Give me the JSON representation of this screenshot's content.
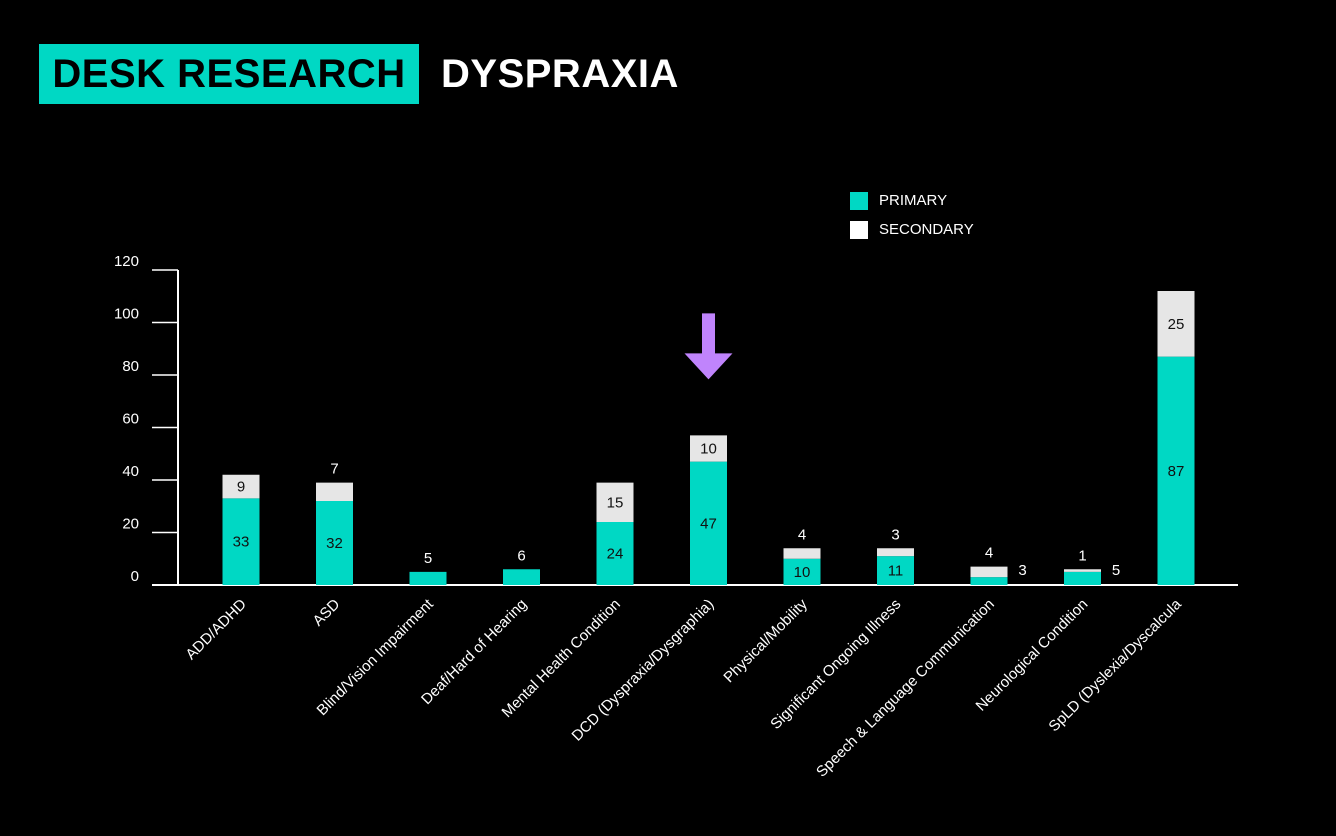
{
  "header": {
    "badge": "DESK RESEARCH",
    "title": "DYSPRAXIA"
  },
  "colors": {
    "background": "#000000",
    "primary": "#00d8c4",
    "secondary": "#e6e6e6",
    "highlight_arrow": "#c084fc",
    "text": "#ffffff"
  },
  "chart_data": {
    "type": "bar",
    "stacked": true,
    "title": "",
    "xlabel": "",
    "ylabel": "",
    "ylim": [
      0,
      120
    ],
    "yticks": [
      0,
      20,
      40,
      60,
      80,
      100,
      120
    ],
    "grid": false,
    "legend_position": "top-right",
    "categories": [
      "ADD/ADHD",
      "ASD",
      "Blind/Vision Impairment",
      "Deaf/Hard of Hearing",
      "Mental Health Condition",
      "DCD (Dyspraxia/Dysgraphia)",
      "Physical/Mobility",
      "Significant Ongoing Illness",
      "Speech & Language Communication",
      "Neurological Condition",
      "SpLD (Dyslexia/Dyscalcula"
    ],
    "series": [
      {
        "name": "PRIMARY",
        "values": [
          33,
          32,
          5,
          6,
          24,
          47,
          10,
          11,
          3,
          5,
          87
        ]
      },
      {
        "name": "SECONDARY",
        "values": [
          9,
          7,
          null,
          null,
          15,
          10,
          4,
          3,
          4,
          1,
          25
        ]
      }
    ],
    "highlighted_category": "DCD (Dyspraxia/Dysgraphia)"
  }
}
